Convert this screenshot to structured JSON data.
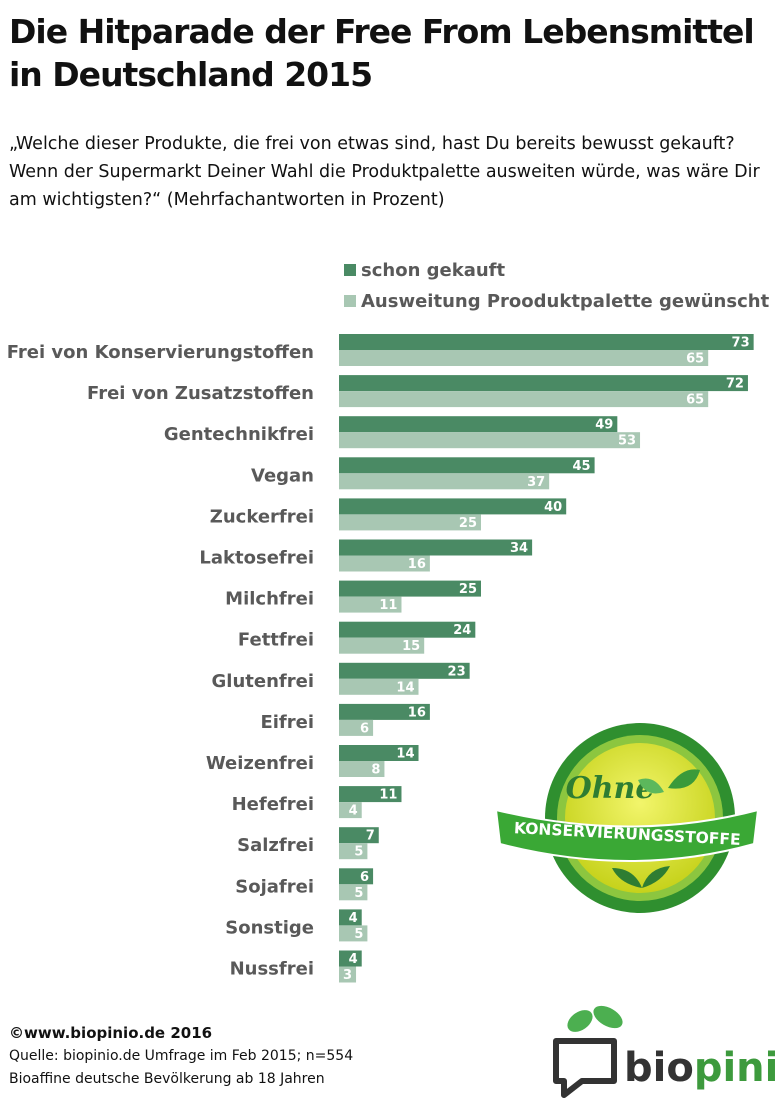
{
  "header": {
    "title": "Die Hitparade der Free From Lebensmittel in Deutschland 2015",
    "subtitle": "„Welche dieser Produkte, die frei von etwas sind, hast Du bereits bewusst gekauft? Wenn der Supermarkt Deiner Wahl die Produktpalette ausweiten würde, was wäre Dir am wichtigsten?“ (Mehrfachantworten in Prozent)"
  },
  "chart_data": {
    "type": "bar",
    "orientation": "horizontal",
    "title": "Die Hitparade der Free From Lebensmittel in Deutschland 2015",
    "xlabel": "",
    "ylabel": "",
    "xlim": [
      0,
      80
    ],
    "grid": false,
    "legend_position": "top-right",
    "categories": [
      "Frei von Konservierungstoffen",
      "Frei von Zusatzstoffen",
      "Gentechnikfrei",
      "Vegan",
      "Zuckerfrei",
      "Laktosefrei",
      "Milchfrei",
      "Fettfrei",
      "Glutenfrei",
      "Eifrei",
      "Weizenfrei",
      "Hefefrei",
      "Salzfrei",
      "Sojafrei",
      "Sonstige",
      "Nussfrei"
    ],
    "series": [
      {
        "name": "schon gekauft",
        "color": "#4a8a64",
        "values": [
          73,
          72,
          49,
          45,
          40,
          34,
          25,
          24,
          23,
          16,
          14,
          11,
          7,
          6,
          4,
          4
        ]
      },
      {
        "name": "Ausweitung Prooduktpalette gewünscht",
        "color": "#a8c7b3",
        "values": [
          65,
          65,
          53,
          37,
          25,
          16,
          11,
          15,
          14,
          6,
          8,
          4,
          5,
          5,
          5,
          3
        ]
      }
    ]
  },
  "badge": {
    "top_text": "Ohne",
    "bottom_text": "KONSERVIERUNGSSTOFFE",
    "colors": {
      "ring": "#2e8b2e",
      "inner": "#d9e021",
      "ribbon": "#3aa835"
    }
  },
  "footer": {
    "copyright": "©www.biopinio.de 2016",
    "source": "Quelle: biopinio.de Umfrage im Feb 2015; n=554",
    "population": "Bioaffine deutsche Bevölkerung  ab 18 Jahren"
  },
  "logo": {
    "text": "biopinio",
    "colors": {
      "leaf": "#4caf50",
      "bubble": "#333333",
      "text_dark": "#333333",
      "text_green": "#3d9a3d"
    }
  }
}
